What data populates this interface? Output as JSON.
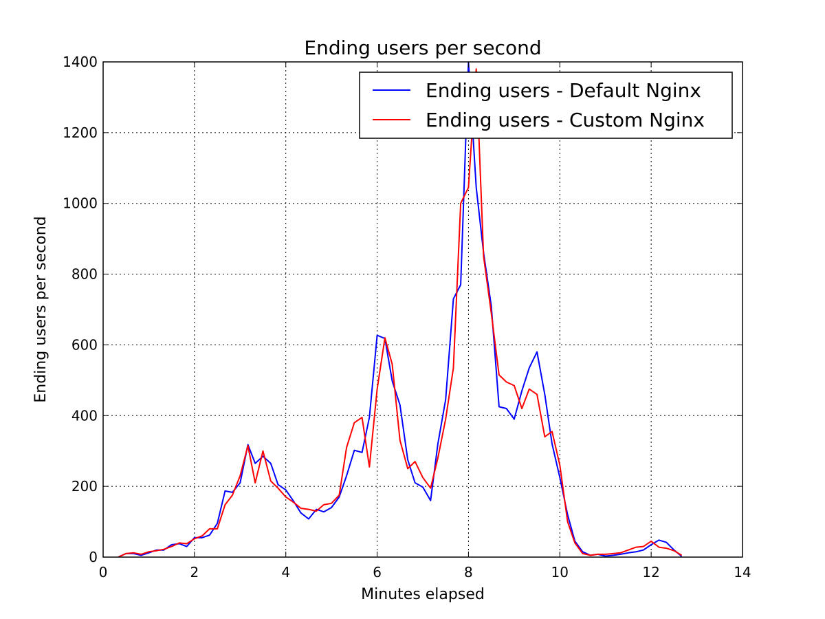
{
  "chart_data": {
    "type": "line",
    "title": "Ending users per second",
    "xlabel": "Minutes elapsed",
    "ylabel": "Ending users per second",
    "xlim": [
      0,
      14
    ],
    "ylim": [
      0,
      1400
    ],
    "xticks": [
      0,
      2,
      4,
      6,
      8,
      10,
      12,
      14
    ],
    "yticks": [
      0,
      200,
      400,
      600,
      800,
      1000,
      1200,
      1400
    ],
    "grid": true,
    "legend_position": "top-right",
    "series": [
      {
        "name": "Ending users - Default Nginx",
        "color": "#0000ff",
        "x": [
          0.33,
          0.5,
          0.67,
          0.83,
          1.0,
          1.17,
          1.33,
          1.5,
          1.67,
          1.83,
          2.0,
          2.17,
          2.33,
          2.5,
          2.67,
          2.83,
          3.0,
          3.17,
          3.33,
          3.5,
          3.67,
          3.83,
          4.0,
          4.17,
          4.33,
          4.5,
          4.67,
          4.83,
          5.0,
          5.17,
          5.33,
          5.5,
          5.67,
          5.83,
          6.0,
          6.17,
          6.33,
          6.5,
          6.67,
          6.83,
          7.0,
          7.17,
          7.33,
          7.5,
          7.67,
          7.83,
          8.0,
          8.17,
          8.33,
          8.5,
          8.67,
          8.83,
          9.0,
          9.17,
          9.33,
          9.5,
          9.67,
          9.83,
          10.0,
          10.17,
          10.33,
          10.5,
          10.67,
          10.83,
          11.0,
          11.17,
          11.33,
          11.5,
          11.67,
          11.83,
          12.0,
          12.17,
          12.33,
          12.5,
          12.67
        ],
        "y": [
          0,
          10,
          10,
          5,
          12,
          20,
          20,
          35,
          38,
          30,
          55,
          55,
          62,
          95,
          187,
          183,
          210,
          318,
          265,
          285,
          265,
          205,
          190,
          158,
          125,
          108,
          135,
          128,
          140,
          170,
          230,
          302,
          296,
          395,
          627,
          618,
          498,
          430,
          275,
          210,
          198,
          160,
          320,
          445,
          730,
          770,
          1400,
          1045,
          860,
          710,
          425,
          420,
          390,
          470,
          535,
          580,
          460,
          320,
          225,
          120,
          45,
          15,
          5,
          8,
          3,
          5,
          8,
          12,
          15,
          20,
          35,
          48,
          42,
          20,
          2
        ]
      },
      {
        "name": "Ending users - Custom Nginx",
        "color": "#ff0000",
        "x": [
          0.33,
          0.5,
          0.67,
          0.83,
          1.0,
          1.17,
          1.33,
          1.5,
          1.67,
          1.83,
          2.0,
          2.17,
          2.33,
          2.5,
          2.67,
          2.83,
          3.0,
          3.17,
          3.33,
          3.5,
          3.67,
          3.83,
          4.0,
          4.17,
          4.33,
          4.5,
          4.67,
          4.83,
          5.0,
          5.17,
          5.33,
          5.5,
          5.67,
          5.83,
          6.0,
          6.17,
          6.33,
          6.5,
          6.67,
          6.83,
          7.0,
          7.17,
          7.33,
          7.5,
          7.67,
          7.83,
          8.0,
          8.17,
          8.33,
          8.5,
          8.67,
          8.83,
          9.0,
          9.17,
          9.33,
          9.5,
          9.67,
          9.83,
          10.0,
          10.17,
          10.33,
          10.5,
          10.67,
          10.83,
          11.0,
          11.17,
          11.33,
          11.5,
          11.67,
          11.83,
          12.0,
          12.17,
          12.33,
          12.5,
          12.67
        ],
        "y": [
          0,
          10,
          12,
          8,
          15,
          18,
          22,
          30,
          40,
          38,
          52,
          60,
          80,
          80,
          148,
          175,
          230,
          315,
          210,
          300,
          215,
          195,
          170,
          155,
          138,
          135,
          130,
          148,
          152,
          175,
          310,
          380,
          395,
          255,
          475,
          620,
          545,
          330,
          250,
          270,
          225,
          195,
          280,
          390,
          535,
          1000,
          1045,
          1380,
          850,
          690,
          515,
          495,
          485,
          420,
          475,
          460,
          340,
          355,
          260,
          100,
          40,
          10,
          5,
          8,
          8,
          10,
          12,
          20,
          28,
          30,
          45,
          28,
          25,
          18,
          5
        ]
      }
    ]
  }
}
